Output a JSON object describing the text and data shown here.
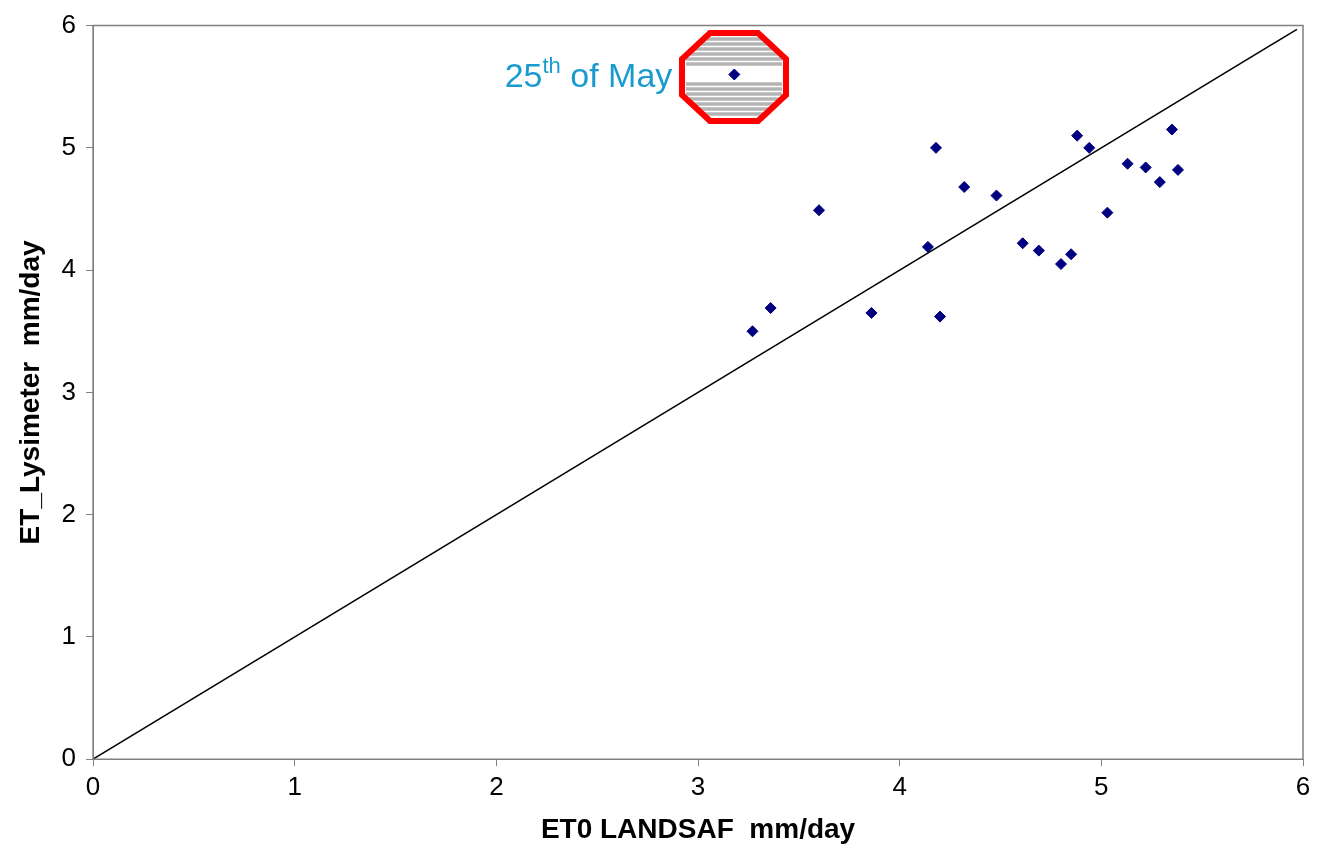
{
  "chart_data": {
    "type": "scatter",
    "xlabel": "ET0 LANDSAF  mm/day",
    "ylabel": "ET_Lysimeter  mm/day",
    "xlim": [
      0,
      6
    ],
    "xticks": [
      0,
      1,
      2,
      3,
      4,
      5,
      6
    ],
    "ylim": [
      0,
      6
    ],
    "yticks": [
      0,
      1,
      2,
      3,
      4,
      5,
      6
    ],
    "grid": false,
    "legend": false,
    "marker": "diamond",
    "series": [
      {
        "color": "#000080",
        "x": [
          3.18,
          3.27,
          3.36,
          3.6,
          3.86,
          4.14,
          4.18,
          4.2,
          4.32,
          4.48,
          4.61,
          4.69,
          4.8,
          4.85,
          4.88,
          4.94,
          5.03,
          5.13,
          5.22,
          5.29,
          5.35,
          5.38
        ],
        "values": [
          5.6,
          3.5,
          3.69,
          4.49,
          3.65,
          4.19,
          5.0,
          3.62,
          4.68,
          4.61,
          4.22,
          4.16,
          4.05,
          4.13,
          5.1,
          5.0,
          4.47,
          4.87,
          4.84,
          4.72,
          5.15,
          4.82
        ]
      },
      {
        "color": "#000000",
        "type": "line",
        "marker": "none",
        "x": [
          0,
          5.97
        ],
        "values": [
          0,
          5.97
        ]
      }
    ],
    "annotations": [
      {
        "text": "25$^{th}$ of May",
        "x": 3.18,
        "y": 5.6
      }
    ]
  }
}
